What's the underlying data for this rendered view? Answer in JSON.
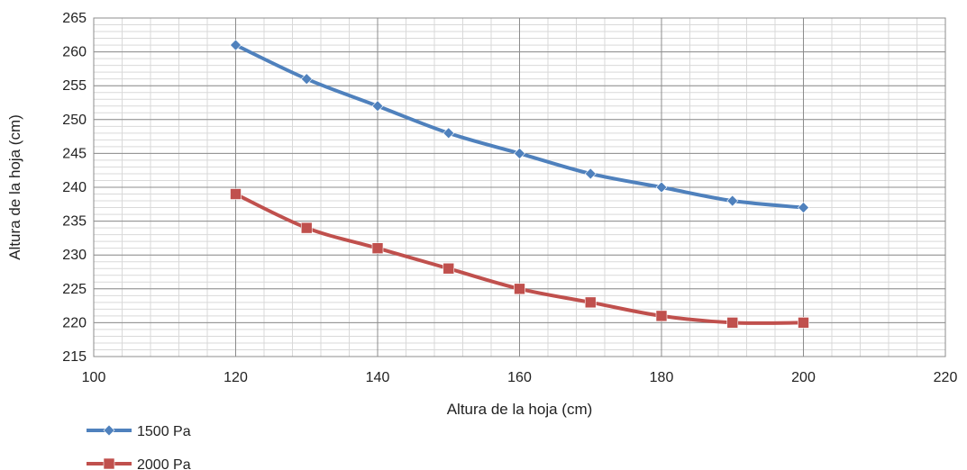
{
  "chart_data": {
    "type": "line",
    "title": "",
    "xlabel": "Altura de la hoja (cm)",
    "ylabel": "Altura de la hoja (cm)",
    "xlim": [
      100,
      220
    ],
    "ylim": [
      215,
      265
    ],
    "x_ticks": [
      100,
      120,
      140,
      160,
      180,
      200,
      220
    ],
    "y_ticks": [
      215,
      220,
      225,
      230,
      235,
      240,
      245,
      250,
      255,
      260,
      265
    ],
    "grid": true,
    "legend_position": "bottom-left",
    "x": [
      120,
      130,
      140,
      150,
      160,
      170,
      180,
      190,
      200
    ],
    "series": [
      {
        "name": "1500 Pa",
        "color": "#4f81bd",
        "marker": "diamond",
        "values": [
          261,
          256,
          252,
          248,
          245,
          242,
          240,
          238,
          237
        ]
      },
      {
        "name": "2000 Pa",
        "color": "#c0504d",
        "marker": "square",
        "values": [
          239,
          234,
          231,
          228,
          225,
          223,
          221,
          220,
          220
        ]
      }
    ]
  }
}
